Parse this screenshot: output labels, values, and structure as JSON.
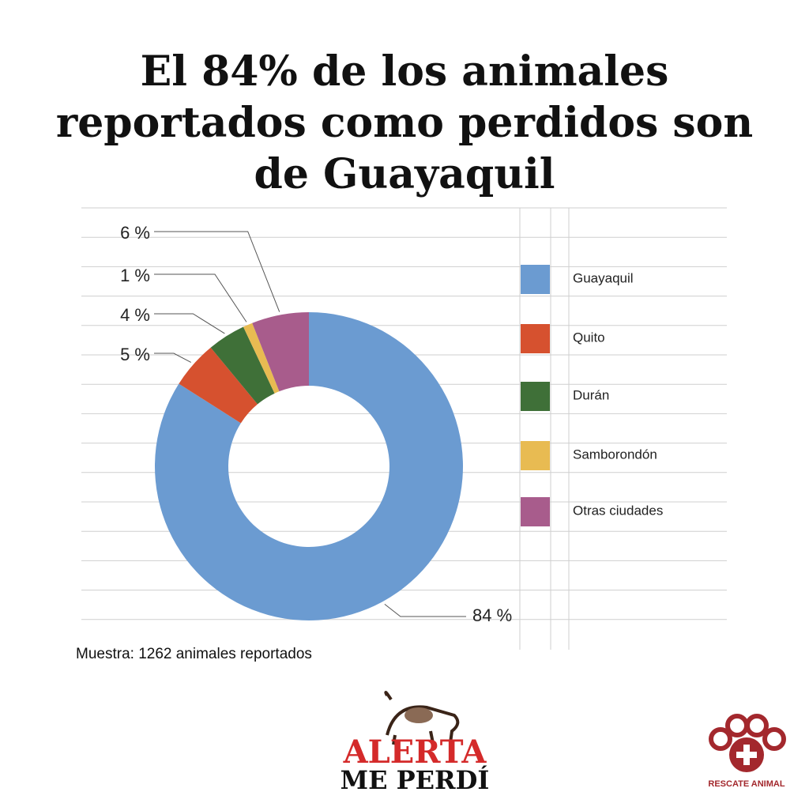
{
  "chart_data": {
    "type": "pie",
    "title": "El 84% de los animales reportados como perdidos son de Guayaquil",
    "categories": [
      "Guayaquil",
      "Quito",
      "Durán",
      "Samborondón",
      "Otras ciudades"
    ],
    "values": [
      84,
      5,
      4,
      1,
      6
    ],
    "value_labels": [
      "84 %",
      "5 %",
      "4 %",
      "1 %",
      "6 %"
    ],
    "colors": [
      "#6b9bd1",
      "#d6512f",
      "#3f7038",
      "#e8bb52",
      "#a85c8c"
    ],
    "donut": true,
    "note": "Muestra: 1262 animales reportados"
  },
  "logos": {
    "alerta": "ALERTA",
    "me_perdi": "ME PERDÍ",
    "rescate": "RESCATE ANIMAL"
  }
}
